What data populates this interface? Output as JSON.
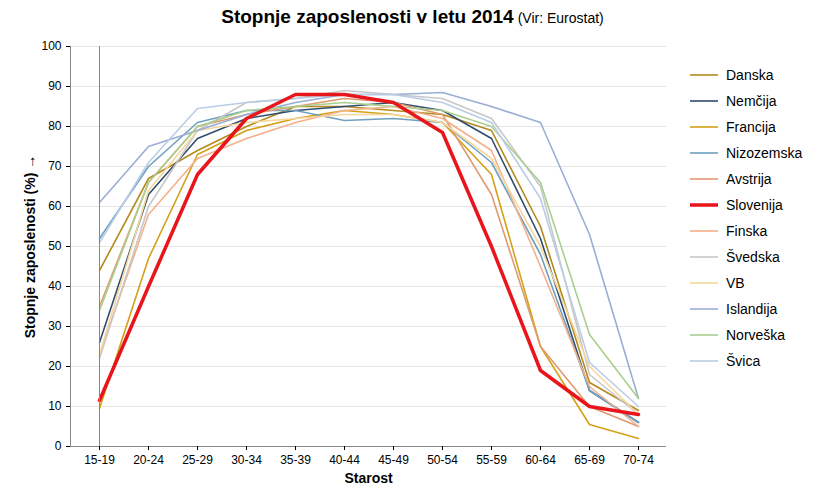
{
  "chart_data": {
    "type": "line",
    "title": "Stopnje zaposlenosti v letu 2014",
    "subtitle": "(Vir: Eurostat)",
    "x_label": "Starost",
    "y_label": "Stopnje zaposlenosti (%)",
    "categories": [
      "15-19",
      "20-24",
      "25-29",
      "30-34",
      "35-39",
      "40-44",
      "45-49",
      "50-54",
      "55-59",
      "60-64",
      "65-69",
      "70-74"
    ],
    "ylim": [
      0,
      100
    ],
    "yticks": [
      0,
      10,
      20,
      30,
      40,
      50,
      60,
      70,
      80,
      90,
      100
    ],
    "grid": true,
    "legend": "right",
    "series": [
      {
        "name": "Danska",
        "color": "#b5891d",
        "values": [
          44,
          67,
          74,
          80,
          85,
          85,
          84,
          83,
          79,
          55,
          16,
          9
        ]
      },
      {
        "name": "Nemčija",
        "color": "#2f4d6e",
        "values": [
          26,
          63,
          77,
          82,
          84,
          85,
          86,
          84,
          77,
          52,
          14,
          6
        ]
      },
      {
        "name": "Francija",
        "color": "#d4a017",
        "values": [
          9.5,
          47,
          73,
          79,
          82,
          84,
          83,
          81,
          68,
          25,
          5.5,
          2
        ]
      },
      {
        "name": "Nizozemska",
        "color": "#6fa0bf",
        "values": [
          52,
          70,
          81,
          84,
          84,
          81.5,
          82,
          81,
          71,
          48,
          14,
          6
        ]
      },
      {
        "name": "Avstrija",
        "color": "#e09a70",
        "values": [
          35,
          66,
          80,
          83,
          85,
          87,
          86,
          83,
          63,
          25,
          10,
          5
        ]
      },
      {
        "name": "Slovenija",
        "color": "#e8151b",
        "line_style": "thick",
        "values": [
          11.5,
          40,
          68,
          82,
          88,
          88,
          86,
          78.5,
          50,
          19,
          10,
          8
        ]
      },
      {
        "name": "Finska",
        "color": "#f4b08a",
        "values": [
          23,
          58,
          72,
          77,
          81,
          84,
          85,
          82,
          74,
          45,
          15,
          5
        ]
      },
      {
        "name": "Švedska",
        "color": "#c8c8c8",
        "values": [
          22,
          60,
          79,
          86,
          87,
          89,
          88,
          87,
          82,
          65,
          18,
          8
        ]
      },
      {
        "name": "VB",
        "color": "#f5d79e",
        "values": [
          23,
          64,
          79,
          81,
          82,
          83,
          83,
          81,
          72,
          50,
          20,
          8
        ]
      },
      {
        "name": "Islandija",
        "color": "#9aaed4",
        "values": [
          61,
          75,
          79,
          83,
          86,
          88,
          88,
          88.5,
          85,
          81,
          53,
          12
        ]
      },
      {
        "name": "Norveška",
        "color": "#a9cf8f",
        "values": [
          34,
          66,
          80,
          84,
          85,
          86,
          85,
          84,
          80,
          66,
          28,
          12
        ]
      },
      {
        "name": "Švica",
        "color": "#b9cde5",
        "values": [
          51,
          71,
          84.5,
          86,
          87,
          88,
          88,
          86,
          81,
          62,
          21,
          10
        ]
      }
    ]
  }
}
